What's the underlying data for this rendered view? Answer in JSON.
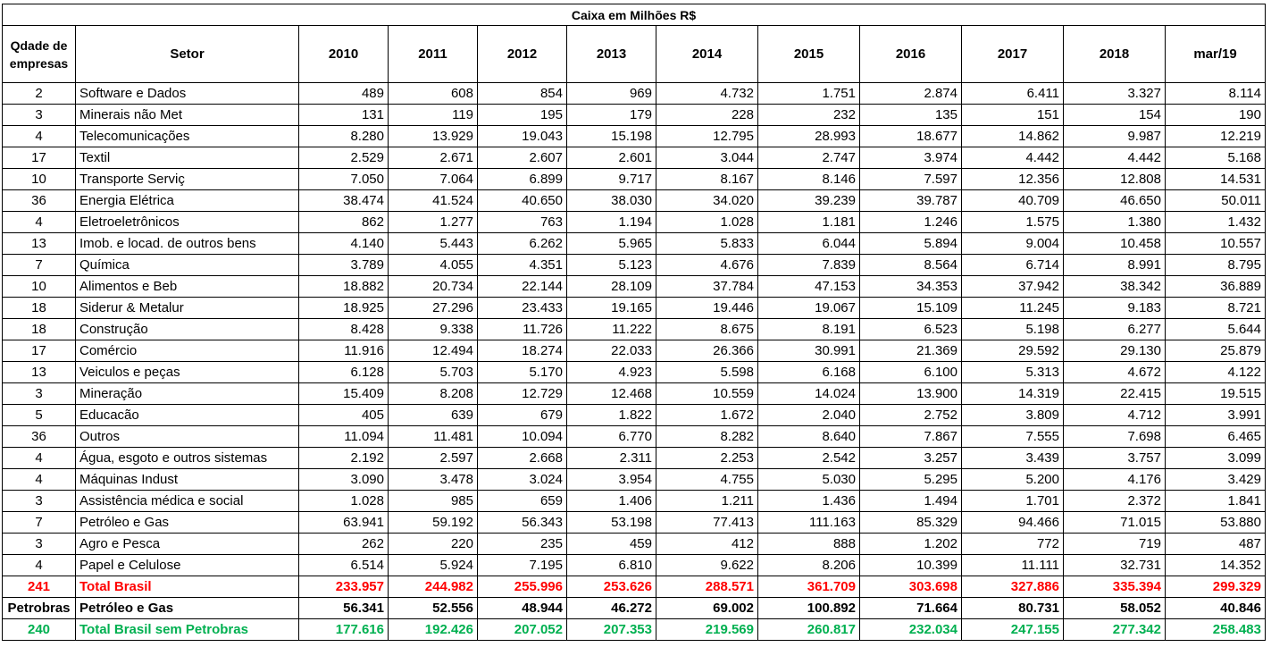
{
  "title": "Caixa em Milhões R$",
  "headers": {
    "qtd": "Qdade de empresas",
    "setor": "Setor",
    "years": [
      "2010",
      "2011",
      "2012",
      "2013",
      "2014",
      "2015",
      "2016",
      "2017",
      "2018",
      "mar/19"
    ]
  },
  "rows": [
    {
      "qtd": "2",
      "setor": "Software e Dados",
      "values": [
        "489",
        "608",
        "854",
        "969",
        "4.732",
        "1.751",
        "2.874",
        "6.411",
        "3.327",
        "8.114"
      ]
    },
    {
      "qtd": "3",
      "setor": "Minerais não Met",
      "values": [
        "131",
        "119",
        "195",
        "179",
        "228",
        "232",
        "135",
        "151",
        "154",
        "190"
      ]
    },
    {
      "qtd": "4",
      "setor": "Telecomunicações",
      "values": [
        "8.280",
        "13.929",
        "19.043",
        "15.198",
        "12.795",
        "28.993",
        "18.677",
        "14.862",
        "9.987",
        "12.219"
      ]
    },
    {
      "qtd": "17",
      "setor": "Textil",
      "values": [
        "2.529",
        "2.671",
        "2.607",
        "2.601",
        "3.044",
        "2.747",
        "3.974",
        "4.442",
        "4.442",
        "5.168"
      ]
    },
    {
      "qtd": "10",
      "setor": "Transporte Serviç",
      "values": [
        "7.050",
        "7.064",
        "6.899",
        "9.717",
        "8.167",
        "8.146",
        "7.597",
        "12.356",
        "12.808",
        "14.531"
      ]
    },
    {
      "qtd": "36",
      "setor": "Energia Elétrica",
      "values": [
        "38.474",
        "41.524",
        "40.650",
        "38.030",
        "34.020",
        "39.239",
        "39.787",
        "40.709",
        "46.650",
        "50.011"
      ]
    },
    {
      "qtd": "4",
      "setor": "Eletroeletrônicos",
      "values": [
        "862",
        "1.277",
        "763",
        "1.194",
        "1.028",
        "1.181",
        "1.246",
        "1.575",
        "1.380",
        "1.432"
      ]
    },
    {
      "qtd": "13",
      "setor": "Imob. e locad. de outros bens",
      "values": [
        "4.140",
        "5.443",
        "6.262",
        "5.965",
        "5.833",
        "6.044",
        "5.894",
        "9.004",
        "10.458",
        "10.557"
      ]
    },
    {
      "qtd": "7",
      "setor": "Química",
      "values": [
        "3.789",
        "4.055",
        "4.351",
        "5.123",
        "4.676",
        "7.839",
        "8.564",
        "6.714",
        "8.991",
        "8.795"
      ]
    },
    {
      "qtd": "10",
      "setor": "Alimentos e Beb",
      "values": [
        "18.882",
        "20.734",
        "22.144",
        "28.109",
        "37.784",
        "47.153",
        "34.353",
        "37.942",
        "38.342",
        "36.889"
      ]
    },
    {
      "qtd": "18",
      "setor": "Siderur & Metalur",
      "values": [
        "18.925",
        "27.296",
        "23.433",
        "19.165",
        "19.446",
        "19.067",
        "15.109",
        "11.245",
        "9.183",
        "8.721"
      ]
    },
    {
      "qtd": "18",
      "setor": "Construção",
      "values": [
        "8.428",
        "9.338",
        "11.726",
        "11.222",
        "8.675",
        "8.191",
        "6.523",
        "5.198",
        "6.277",
        "5.644"
      ]
    },
    {
      "qtd": "17",
      "setor": "Comércio",
      "values": [
        "11.916",
        "12.494",
        "18.274",
        "22.033",
        "26.366",
        "30.991",
        "21.369",
        "29.592",
        "29.130",
        "25.879"
      ]
    },
    {
      "qtd": "13",
      "setor": "Veiculos e peças",
      "values": [
        "6.128",
        "5.703",
        "5.170",
        "4.923",
        "5.598",
        "6.168",
        "6.100",
        "5.313",
        "4.672",
        "4.122"
      ]
    },
    {
      "qtd": "3",
      "setor": "Mineração",
      "values": [
        "15.409",
        "8.208",
        "12.729",
        "12.468",
        "10.559",
        "14.024",
        "13.900",
        "14.319",
        "22.415",
        "19.515"
      ]
    },
    {
      "qtd": "5",
      "setor": "Educacão",
      "values": [
        "405",
        "639",
        "679",
        "1.822",
        "1.672",
        "2.040",
        "2.752",
        "3.809",
        "4.712",
        "3.991"
      ]
    },
    {
      "qtd": "36",
      "setor": "Outros",
      "values": [
        "11.094",
        "11.481",
        "10.094",
        "6.770",
        "8.282",
        "8.640",
        "7.867",
        "7.555",
        "7.698",
        "6.465"
      ]
    },
    {
      "qtd": "4",
      "setor": "Água, esgoto e outros sistemas",
      "values": [
        "2.192",
        "2.597",
        "2.668",
        "2.311",
        "2.253",
        "2.542",
        "3.257",
        "3.439",
        "3.757",
        "3.099"
      ]
    },
    {
      "qtd": "4",
      "setor": "Máquinas Indust",
      "values": [
        "3.090",
        "3.478",
        "3.024",
        "3.954",
        "4.755",
        "5.030",
        "5.295",
        "5.200",
        "4.176",
        "3.429"
      ]
    },
    {
      "qtd": "3",
      "setor": "Assistência médica e social",
      "values": [
        "1.028",
        "985",
        "659",
        "1.406",
        "1.211",
        "1.436",
        "1.494",
        "1.701",
        "2.372",
        "1.841"
      ]
    },
    {
      "qtd": "7",
      "setor": "Petróleo e Gas",
      "values": [
        "63.941",
        "59.192",
        "56.343",
        "53.198",
        "77.413",
        "111.163",
        "85.329",
        "94.466",
        "71.015",
        "53.880"
      ]
    },
    {
      "qtd": "3",
      "setor": "Agro e Pesca",
      "values": [
        "262",
        "220",
        "235",
        "459",
        "412",
        "888",
        "1.202",
        "772",
        "719",
        "487"
      ]
    },
    {
      "qtd": "4",
      "setor": "Papel e Celulose",
      "values": [
        "6.514",
        "5.924",
        "7.195",
        "6.810",
        "9.622",
        "8.206",
        "10.399",
        "11.111",
        "32.731",
        "14.352"
      ]
    }
  ],
  "totals": [
    {
      "style": "total-red",
      "qtd": "241",
      "setor": "Total Brasil",
      "values": [
        "233.957",
        "244.982",
        "255.996",
        "253.626",
        "288.571",
        "361.709",
        "303.698",
        "327.886",
        "335.394",
        "299.329"
      ]
    },
    {
      "style": "total-black",
      "qtd": "Petrobras",
      "setor": "Petróleo e Gas",
      "values": [
        "56.341",
        "52.556",
        "48.944",
        "46.272",
        "69.002",
        "100.892",
        "71.664",
        "80.731",
        "58.052",
        "40.846"
      ]
    },
    {
      "style": "total-green",
      "qtd": "240",
      "setor": "Total Brasil sem Petrobras",
      "values": [
        "177.616",
        "192.426",
        "207.052",
        "207.353",
        "219.569",
        "260.817",
        "232.034",
        "247.155",
        "277.342",
        "258.483"
      ]
    }
  ]
}
